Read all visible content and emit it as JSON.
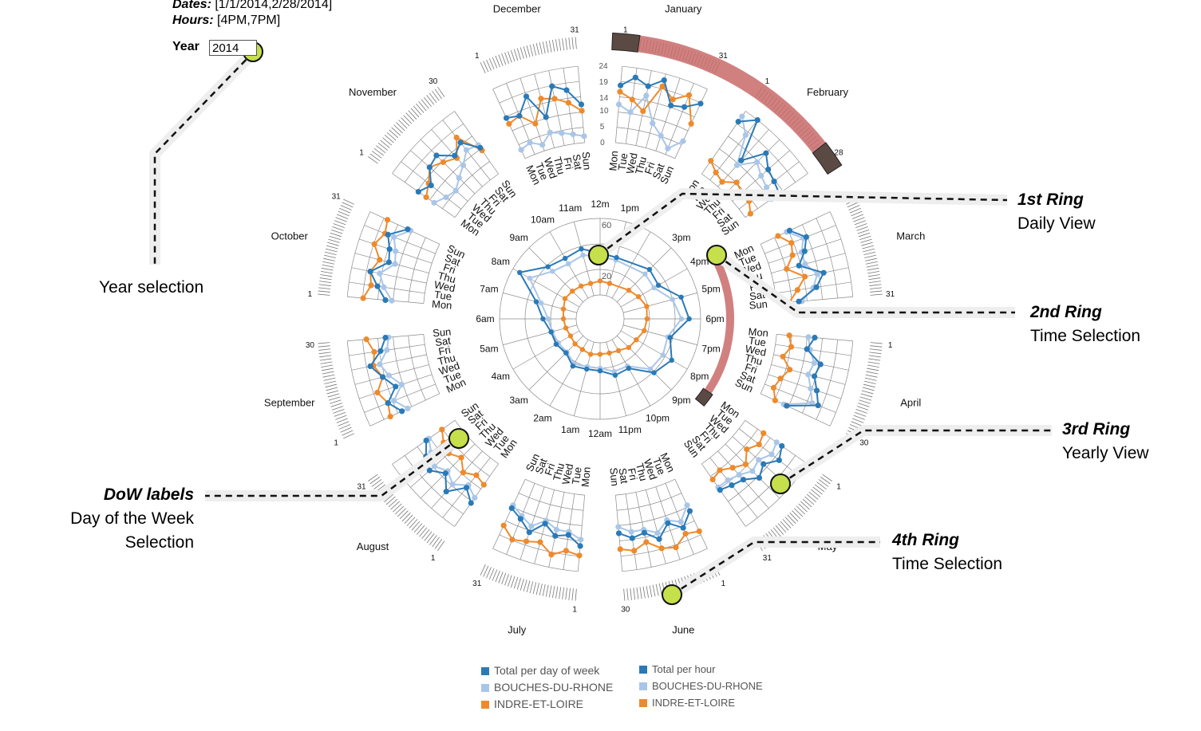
{
  "header": {
    "dates_label": "Dates:",
    "dates_value": "[1/1/2014,2/28/2014]",
    "hours_label": "Hours:",
    "hours_value": "[4PM,7PM]",
    "year_label": "Year",
    "year_value": "2014"
  },
  "colors": {
    "total": "#2a7ab8",
    "bouches": "#a9c6e8",
    "indre": "#ee8a2c",
    "selection": "#c96a6a",
    "handle": "#5b4a44",
    "marker": "#c5e04a",
    "grid": "#8a8a8a"
  },
  "months": [
    "January",
    "February",
    "March",
    "April",
    "May",
    "June",
    "July",
    "August",
    "September",
    "October",
    "November",
    "December"
  ],
  "month_start_labels": [
    "1",
    "1",
    "1",
    "1",
    "1",
    "1",
    "1",
    "1",
    "1",
    "1",
    "1",
    "1"
  ],
  "month_end_labels": [
    "31",
    "28",
    "31",
    "30",
    "31",
    "30",
    "31",
    "31",
    "30",
    "31",
    "30",
    "31"
  ],
  "dow_labels": [
    "Mon",
    "Tue",
    "Wed",
    "Thu",
    "Fri",
    "Sat",
    "Sun"
  ],
  "hour_labels": [
    "12m",
    "1pm",
    "3pm",
    "4pm",
    "5pm",
    "6pm",
    "7pm",
    "8pm",
    "9pm",
    "10pm",
    "11pm",
    "12am",
    "1am",
    "2am",
    "3am",
    "4am",
    "5am",
    "6am",
    "7am",
    "8am",
    "9am",
    "10am",
    "11am"
  ],
  "radial_ticks": [
    "60",
    "40",
    "20"
  ],
  "value_axis_ticks": [
    "24",
    "19",
    "14",
    "10",
    "5",
    "0"
  ],
  "callouts": {
    "ring1_title": "1st Ring",
    "ring1_sub": "Daily View",
    "ring2_title": "2nd Ring",
    "ring2_sub": "Time Selection",
    "ring3_title": "3rd Ring",
    "ring3_sub": "Yearly View",
    "ring4_title": "4th Ring",
    "ring4_sub": "Time Selection",
    "dow_title": "DoW labels",
    "dow_sub1": "Day of the Week",
    "dow_sub2": "Selection",
    "year_sel": "Year selection"
  },
  "legend_left": [
    "Total per day of week",
    "BOUCHES-DU-RHONE",
    "INDRE-ET-LOIRE"
  ],
  "legend_right": [
    "Total per hour",
    "BOUCHES-DU-RHONE",
    "INDRE-ET-LOIRE"
  ],
  "hourly_series": {
    "total": [
      33,
      31,
      36,
      34,
      47,
      51,
      38,
      46,
      41,
      26,
      27,
      22,
      22,
      24,
      19,
      21,
      21,
      26,
      33,
      54,
      39,
      36,
      38
    ],
    "bouches": [
      30,
      29,
      31,
      30,
      40,
      45,
      36,
      38,
      37,
      24,
      24,
      20,
      20,
      22,
      18,
      19,
      20,
      22,
      29,
      45,
      34,
      31,
      33
    ],
    "indre": [
      11,
      10,
      13,
      16,
      19,
      18,
      17,
      14,
      13,
      10,
      9,
      9,
      10,
      9,
      9,
      8,
      9,
      10,
      11,
      13,
      12,
      11,
      10
    ]
  },
  "daily_series": [
    {
      "total": [
        18,
        21,
        19,
        22,
        15,
        16,
        19
      ],
      "bouches": [
        12,
        10,
        16,
        8,
        5,
        2,
        6
      ],
      "indre": [
        16,
        14,
        11,
        20,
        17,
        20,
        12
      ]
    },
    {
      "total": [
        20,
        24,
        11,
        18,
        15,
        14,
        13
      ],
      "bouches": [
        22,
        18,
        9,
        14,
        12,
        11,
        10
      ],
      "indre": [
        5,
        3,
        2,
        5,
        4,
        4,
        2
      ]
    },
    {
      "total": [
        10,
        14,
        12,
        9,
        16,
        13,
        7
      ],
      "bouches": [
        9,
        13,
        11,
        11,
        14,
        12,
        8
      ],
      "indre": [
        6,
        9,
        8,
        5,
        10,
        7,
        4
      ]
    },
    {
      "total": [
        12,
        10,
        15,
        14,
        16,
        18,
        9
      ],
      "bouches": [
        10,
        11,
        13,
        12,
        14,
        16,
        8
      ],
      "indre": [
        4,
        5,
        3,
        6,
        4,
        3,
        5
      ]
    },
    {
      "total": [
        14,
        16,
        13,
        15,
        12,
        11,
        10
      ],
      "bouches": [
        12,
        13,
        11,
        12,
        10,
        9,
        9
      ],
      "indre": [
        7,
        8,
        6,
        9,
        7,
        5,
        6
      ]
    },
    {
      "total": [
        11,
        15,
        12,
        16,
        13,
        14,
        12
      ],
      "bouches": [
        9,
        13,
        11,
        14,
        12,
        12,
        10
      ],
      "indre": [
        18,
        17,
        20,
        19,
        16,
        18,
        17
      ]
    },
    {
      "total": [
        16,
        13,
        14,
        11,
        15,
        12,
        10
      ],
      "bouches": [
        14,
        12,
        12,
        10,
        13,
        11,
        9
      ],
      "indre": [
        19,
        18,
        20,
        17,
        18,
        19,
        16
      ]
    },
    {
      "total": [
        15,
        12,
        17,
        13,
        16,
        14,
        11
      ],
      "bouches": [
        13,
        11,
        14,
        12,
        14,
        12,
        10
      ],
      "indre": [
        8,
        7,
        9,
        6,
        8,
        7,
        5
      ]
    },
    {
      "total": [
        13,
        16,
        12,
        15,
        18,
        14,
        12
      ],
      "bouches": [
        11,
        14,
        10,
        13,
        15,
        12,
        11
      ],
      "indre": [
        17,
        16,
        18,
        15,
        17,
        16,
        18
      ]
    },
    {
      "total": [
        12,
        15,
        18,
        13,
        14,
        16,
        11
      ],
      "bouches": [
        10,
        13,
        15,
        11,
        12,
        14,
        10
      ],
      "indre": [
        19,
        17,
        18,
        16,
        19,
        17,
        18
      ]
    },
    {
      "total": [
        14,
        12,
        16,
        17,
        13,
        15,
        10
      ],
      "bouches": [
        8,
        6,
        5,
        7,
        9,
        12,
        11
      ],
      "indre": [
        11,
        13,
        16,
        14,
        12,
        17,
        9
      ]
    },
    {
      "total": [
        14,
        13,
        18,
        10,
        19,
        17,
        12
      ],
      "bouches": [
        3,
        4,
        2,
        5,
        4,
        3,
        2
      ],
      "indre": [
        12,
        13,
        9,
        16,
        15,
        13,
        10
      ]
    }
  ]
}
